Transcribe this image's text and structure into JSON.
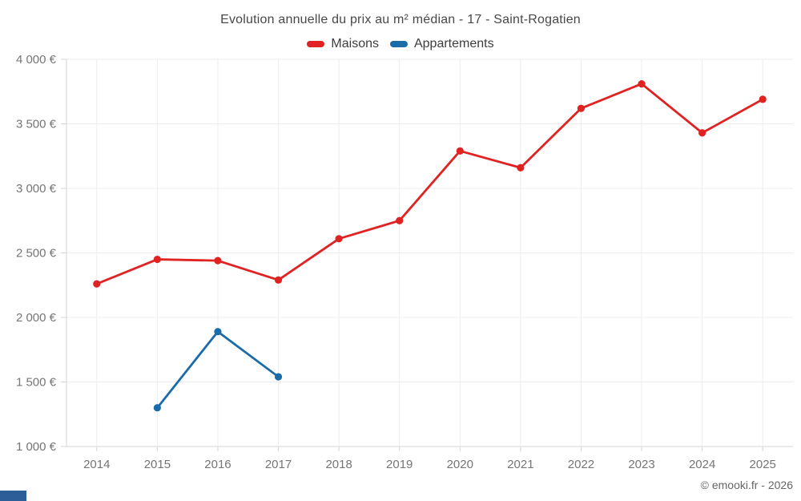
{
  "chart_data": {
    "type": "line",
    "title": "Evolution annuelle du prix au m² médian - 17 - Saint-Rogatien",
    "categories": [
      "2014",
      "2015",
      "2016",
      "2017",
      "2018",
      "2019",
      "2020",
      "2021",
      "2022",
      "2023",
      "2024",
      "2025"
    ],
    "series": [
      {
        "name": "Maisons",
        "color": "#e02222",
        "values": [
          2260,
          2450,
          2440,
          2290,
          2610,
          2750,
          3290,
          3160,
          3620,
          3810,
          3430,
          3690
        ]
      },
      {
        "name": "Appartements",
        "color": "#1a6ca9",
        "values": [
          null,
          1300,
          1890,
          1540,
          null,
          null,
          null,
          null,
          null,
          null,
          null,
          null
        ]
      }
    ],
    "ylim": [
      1000,
      4000
    ],
    "y_ticks": [
      4000,
      3500,
      3000,
      2500,
      2000,
      1500,
      1000
    ],
    "y_tick_labels": [
      "4 000 €",
      "3 500 €",
      "3 000 €",
      "2 500 €",
      "2 000 €",
      "1 500 €",
      "1 000 €"
    ],
    "grid": true,
    "legend_position": "top",
    "xlabel": "",
    "ylabel": ""
  },
  "footer": {
    "copyright": "© emooki.fr - 2026"
  },
  "colors": {
    "grid": "#ededed",
    "axis": "#d4d4d4",
    "tick_text": "#757575",
    "corner_bar": "#2e5e97"
  }
}
